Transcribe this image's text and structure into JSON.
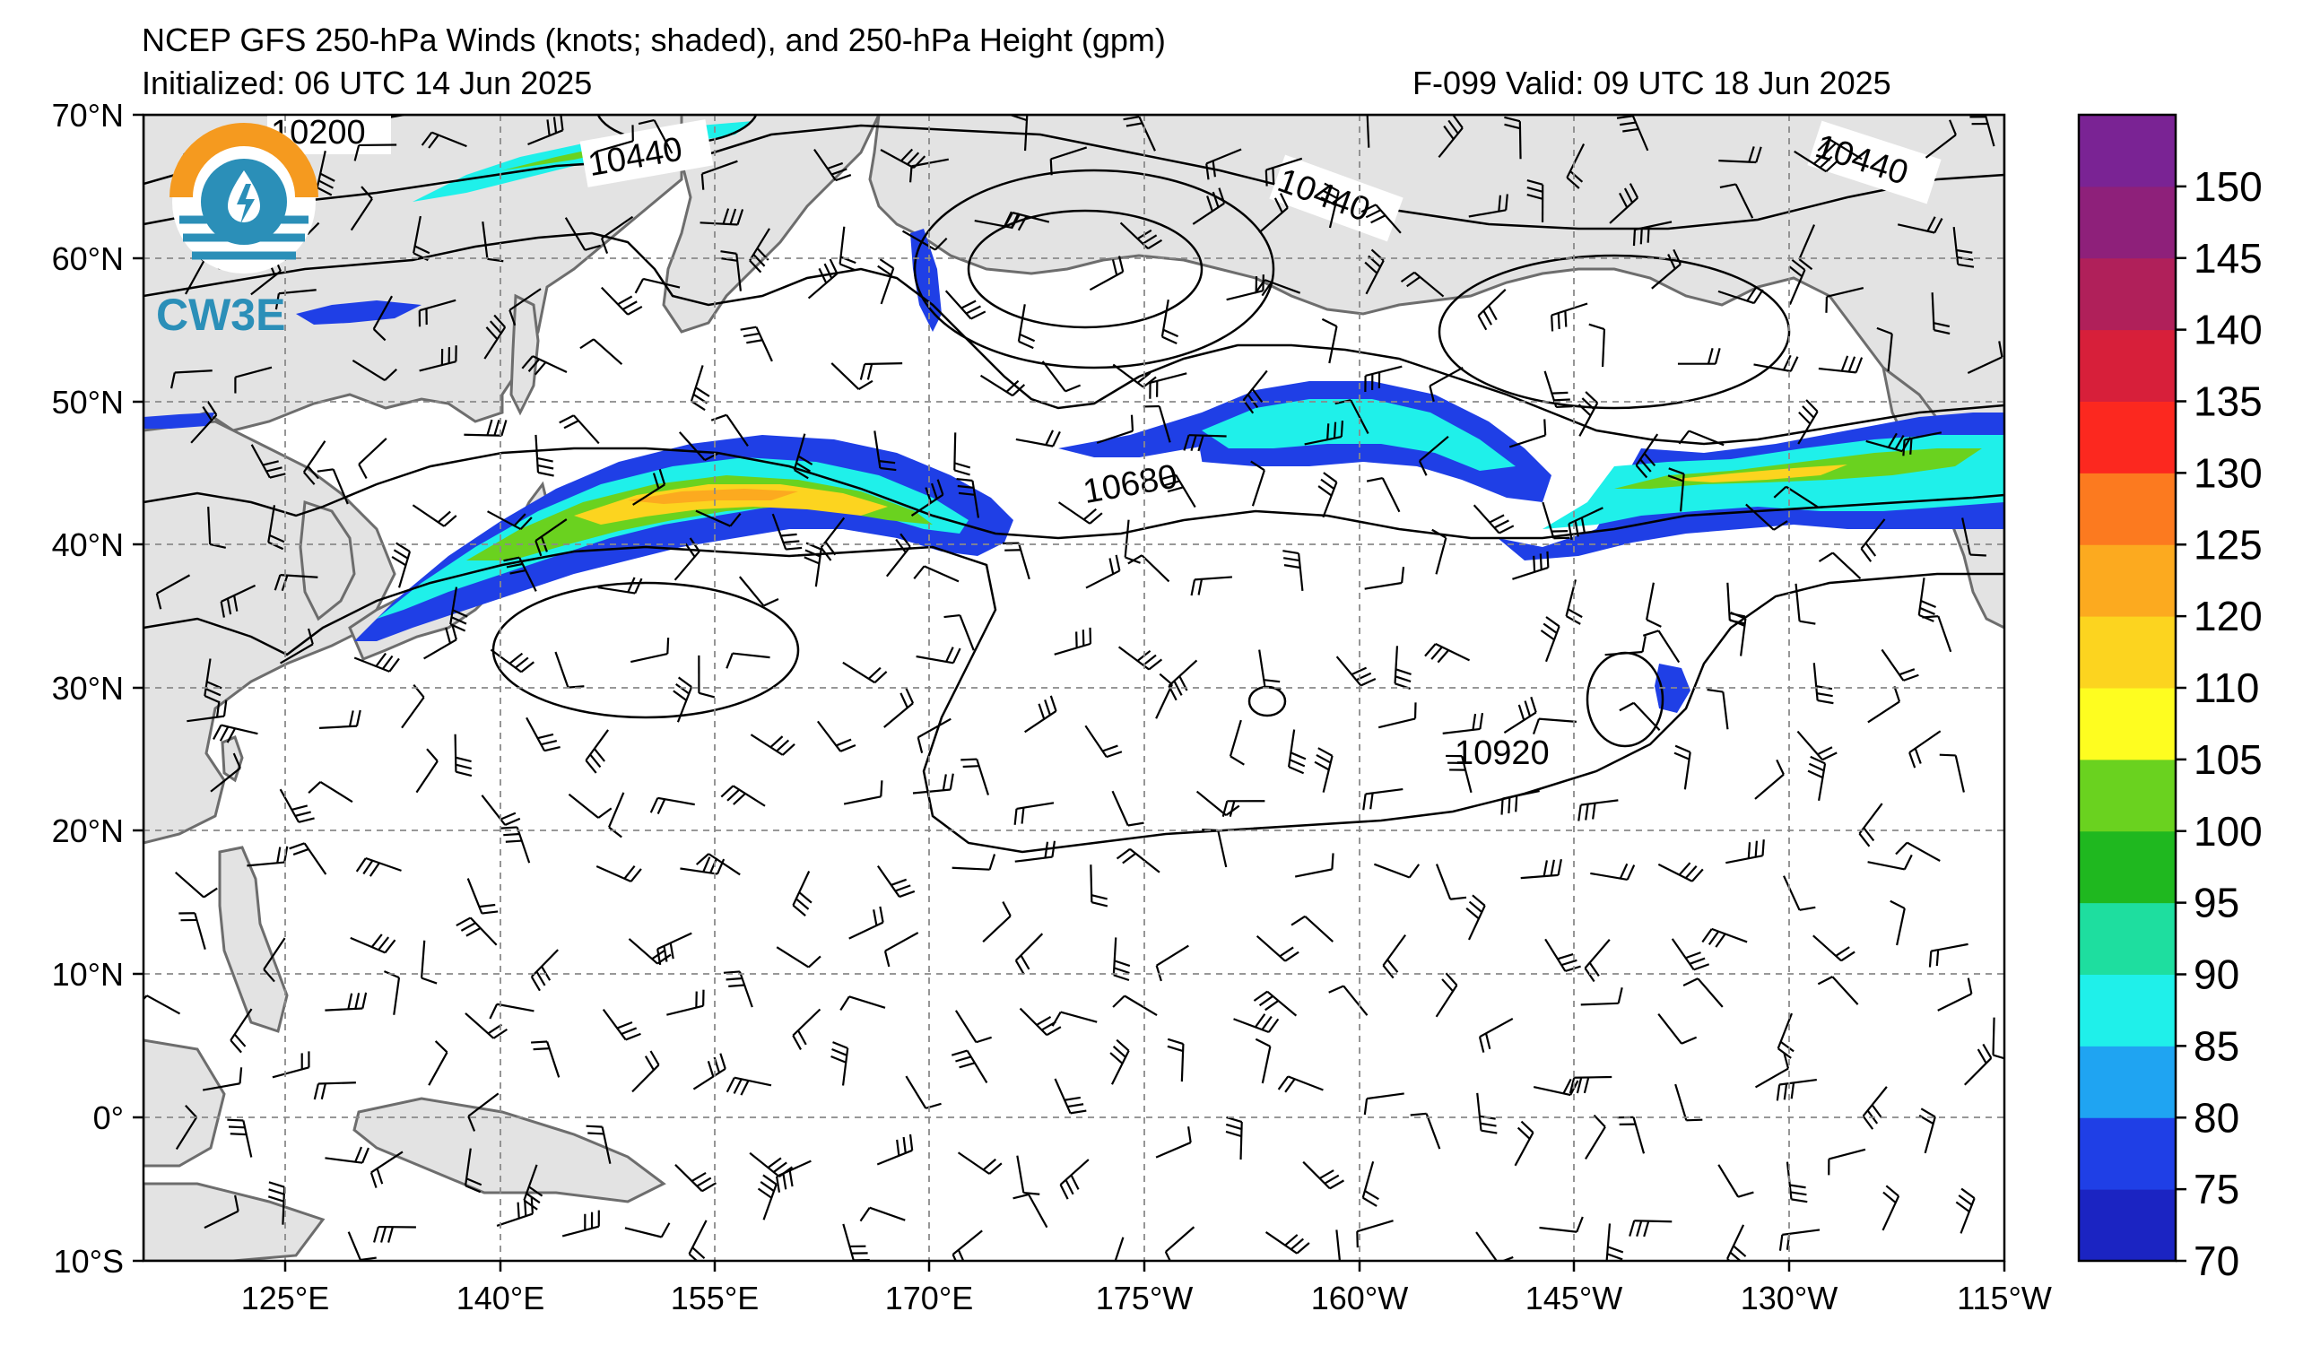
{
  "header": {
    "title": "NCEP GFS 250-hPa Winds (knots; shaded), and 250-hPa Height (gpm)",
    "initialized": "Initialized: 06 UTC 14 Jun 2025",
    "valid": "F-099  Valid: 09 UTC 18 Jun 2025"
  },
  "logo": {
    "text": "CW3E"
  },
  "map": {
    "lon_labels": [
      "125°E",
      "140°E",
      "155°E",
      "170°E",
      "175°W",
      "160°W",
      "145°W",
      "130°W",
      "115°W"
    ],
    "lat_labels": [
      "70°N",
      "60°N",
      "50°N",
      "40°N",
      "30°N",
      "20°N",
      "10°N",
      "0°",
      "10°S"
    ],
    "contour_labels": [
      "10200",
      "10440",
      "10440",
      "10440",
      "10680",
      "10920"
    ]
  },
  "colorbar": {
    "ticks": [
      "70",
      "75",
      "80",
      "85",
      "90",
      "95",
      "100",
      "105",
      "110",
      "120",
      "125",
      "130",
      "135",
      "140",
      "145",
      "150"
    ],
    "colors": [
      "#1b24c2",
      "#1f3fe6",
      "#1fa4f2",
      "#1ff0ea",
      "#1ede9f",
      "#1fb81f",
      "#6ad21f",
      "#fefd20",
      "#fcd41f",
      "#fcaa1f",
      "#fc7a1f",
      "#fc281f",
      "#d71f3a",
      "#b0205a",
      "#8e207a",
      "#7a2394"
    ]
  }
}
